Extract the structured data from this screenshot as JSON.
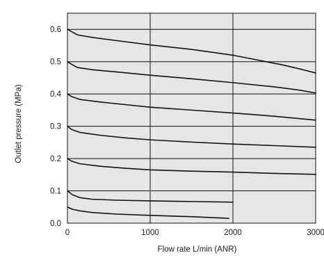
{
  "chart_data": {
    "type": "line",
    "title": "",
    "xlabel": "Flow rate L/min (ANR)",
    "ylabel": "Outlet pressure (MPa)",
    "xlim": [
      0,
      3000
    ],
    "ylim": [
      0,
      0.65
    ],
    "xticks": [
      0,
      1000,
      2000,
      3000
    ],
    "yticks": [
      0.0,
      0.1,
      0.2,
      0.3,
      0.4,
      0.5,
      0.6
    ],
    "xtick_labels": [
      "0",
      "1000",
      "2000",
      "3000"
    ],
    "ytick_labels": [
      "0.0",
      "0.1",
      "0.2",
      "0.3",
      "0.4",
      "0.5",
      "0.6"
    ],
    "grid": true,
    "plot_background": "#e6e6e6",
    "line_color": "#111111",
    "series": [
      {
        "x": [
          0,
          50,
          120,
          300,
          600,
          1000,
          1500,
          2000,
          2300,
          2600,
          2800,
          3000
        ],
        "y": [
          0.6,
          0.593,
          0.583,
          0.575,
          0.565,
          0.552,
          0.538,
          0.52,
          0.505,
          0.49,
          0.478,
          0.465
        ]
      },
      {
        "x": [
          0,
          50,
          120,
          300,
          600,
          1000,
          1500,
          2000,
          2500,
          2800,
          3000
        ],
        "y": [
          0.5,
          0.492,
          0.482,
          0.475,
          0.468,
          0.458,
          0.447,
          0.435,
          0.422,
          0.412,
          0.403
        ]
      },
      {
        "x": [
          0,
          50,
          150,
          400,
          700,
          1000,
          1500,
          2000,
          2500,
          3000
        ],
        "y": [
          0.4,
          0.392,
          0.383,
          0.375,
          0.367,
          0.359,
          0.35,
          0.341,
          0.331,
          0.319
        ]
      },
      {
        "x": [
          0,
          50,
          150,
          400,
          700,
          1000,
          1500,
          2000,
          2500,
          3000
        ],
        "y": [
          0.3,
          0.29,
          0.281,
          0.272,
          0.264,
          0.258,
          0.251,
          0.245,
          0.24,
          0.235
        ]
      },
      {
        "x": [
          0,
          50,
          150,
          400,
          700,
          1000,
          1500,
          2000,
          2500,
          3000
        ],
        "y": [
          0.2,
          0.192,
          0.184,
          0.176,
          0.17,
          0.165,
          0.161,
          0.158,
          0.154,
          0.151
        ]
      },
      {
        "x": [
          0,
          60,
          150,
          300,
          600,
          1000,
          1500,
          2000
        ],
        "y": [
          0.1,
          0.088,
          0.079,
          0.074,
          0.071,
          0.069,
          0.067,
          0.065
        ]
      },
      {
        "x": [
          0,
          60,
          150,
          300,
          600,
          1000,
          1500,
          1950
        ],
        "y": [
          0.05,
          0.043,
          0.038,
          0.033,
          0.028,
          0.024,
          0.02,
          0.015
        ]
      }
    ]
  }
}
